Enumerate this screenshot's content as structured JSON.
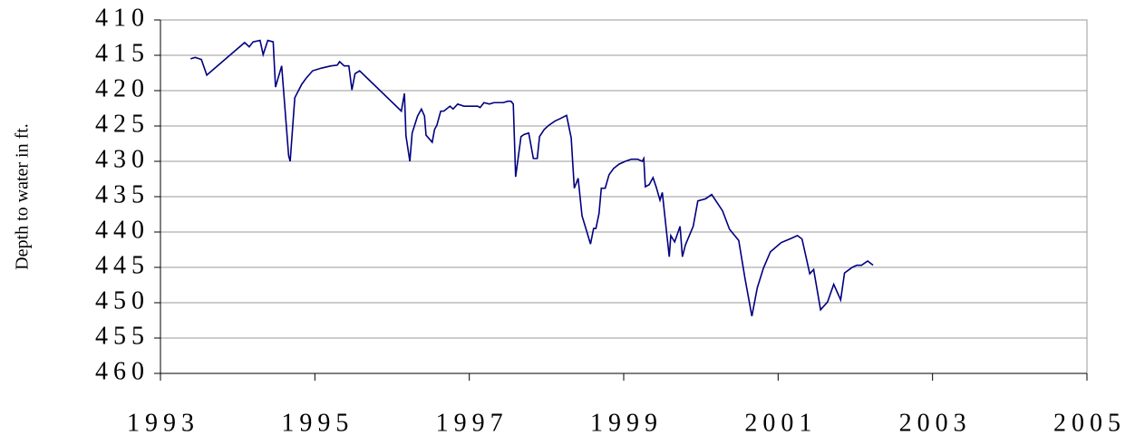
{
  "chart_data": {
    "type": "line",
    "y_label": "Depth to water in ft.",
    "color": "#000080",
    "x": [
      1993.39,
      1993.45,
      1993.53,
      1993.6,
      1994.09,
      1994.15,
      1994.2,
      1994.29,
      1994.33,
      1994.39,
      1994.46,
      1994.49,
      1994.57,
      1994.66,
      1994.68,
      1994.74,
      1994.83,
      1994.89,
      1994.97,
      1995.09,
      1995.21,
      1995.29,
      1995.32,
      1995.38,
      1995.44,
      1995.48,
      1995.52,
      1995.58,
      1996.12,
      1996.16,
      1996.18,
      1996.23,
      1996.26,
      1996.33,
      1996.38,
      1996.42,
      1996.44,
      1996.52,
      1996.55,
      1996.58,
      1996.63,
      1996.67,
      1996.75,
      1996.79,
      1996.85,
      1996.93,
      1997.03,
      1997.11,
      1997.14,
      1997.19,
      1997.26,
      1997.32,
      1997.44,
      1997.5,
      1997.54,
      1997.57,
      1997.6,
      1997.67,
      1997.71,
      1997.77,
      1997.83,
      1997.88,
      1997.91,
      1997.97,
      1998.03,
      1998.11,
      1998.17,
      1998.26,
      1998.32,
      1998.36,
      1998.41,
      1998.46,
      1998.51,
      1998.57,
      1998.61,
      1998.64,
      1998.68,
      1998.71,
      1998.76,
      1998.81,
      1998.87,
      1998.94,
      1999.02,
      1999.1,
      1999.18,
      1999.24,
      1999.26,
      1999.28,
      1999.33,
      1999.38,
      1999.42,
      1999.47,
      1999.5,
      1999.55,
      1999.59,
      1999.61,
      1999.66,
      1999.73,
      1999.76,
      1999.8,
      1999.9,
      1999.96,
      2000.06,
      2000.14,
      2000.28,
      2000.37,
      2000.49,
      2000.57,
      2000.66,
      2000.73,
      2000.81,
      2000.9,
      2001.04,
      2001.17,
      2001.25,
      2001.31,
      2001.41,
      2001.46,
      2001.55,
      2001.64,
      2001.72,
      2001.81,
      2001.86,
      2001.96,
      2002.02,
      2002.08,
      2002.16,
      2002.23
    ],
    "values": [
      415.5,
      415.3,
      415.6,
      417.8,
      413.2,
      413.8,
      413.1,
      412.9,
      414.9,
      412.9,
      413.1,
      419.5,
      416.5,
      429.2,
      430,
      421,
      419.1,
      418.2,
      417.2,
      416.8,
      416.5,
      416.4,
      415.9,
      416.5,
      416.5,
      419.9,
      417.6,
      417.2,
      422.9,
      420.4,
      426.4,
      430,
      426,
      423.6,
      422.6,
      423.6,
      426.3,
      427.3,
      425.5,
      424.9,
      422.9,
      422.9,
      422.2,
      422.6,
      421.9,
      422.2,
      422.2,
      422.2,
      422.4,
      421.7,
      421.9,
      421.7,
      421.7,
      421.5,
      421.5,
      421.9,
      432.2,
      426.5,
      426.2,
      426,
      429.6,
      429.6,
      426.5,
      425.5,
      424.9,
      424.3,
      424,
      423.5,
      426.7,
      433.8,
      432.4,
      437.7,
      439.5,
      441.7,
      439.5,
      439.5,
      437.4,
      433.8,
      433.8,
      431.9,
      431,
      430.4,
      430,
      429.7,
      429.7,
      430,
      429.6,
      433.6,
      433.3,
      432.3,
      433.6,
      435.5,
      434.4,
      439.5,
      443.5,
      440.5,
      441.4,
      439.2,
      443.5,
      441.8,
      439.2,
      435.6,
      435.3,
      434.7,
      437,
      439.6,
      441.2,
      446.5,
      451.9,
      447.9,
      445.1,
      442.8,
      441.5,
      440.9,
      440.5,
      441,
      445.9,
      445.3,
      451,
      449.9,
      447.4,
      449.6,
      445.8,
      445,
      444.7,
      444.7,
      444.1,
      444.7
    ],
    "xlim": [
      1993,
      2005
    ],
    "xticks": [
      1993,
      1995,
      1997,
      1999,
      2001,
      2003,
      2005
    ],
    "ylim": [
      410,
      460
    ],
    "yticks": [
      410,
      415,
      420,
      425,
      430,
      435,
      440,
      445,
      450,
      455,
      460
    ],
    "y_reversed": true,
    "grid": true
  }
}
